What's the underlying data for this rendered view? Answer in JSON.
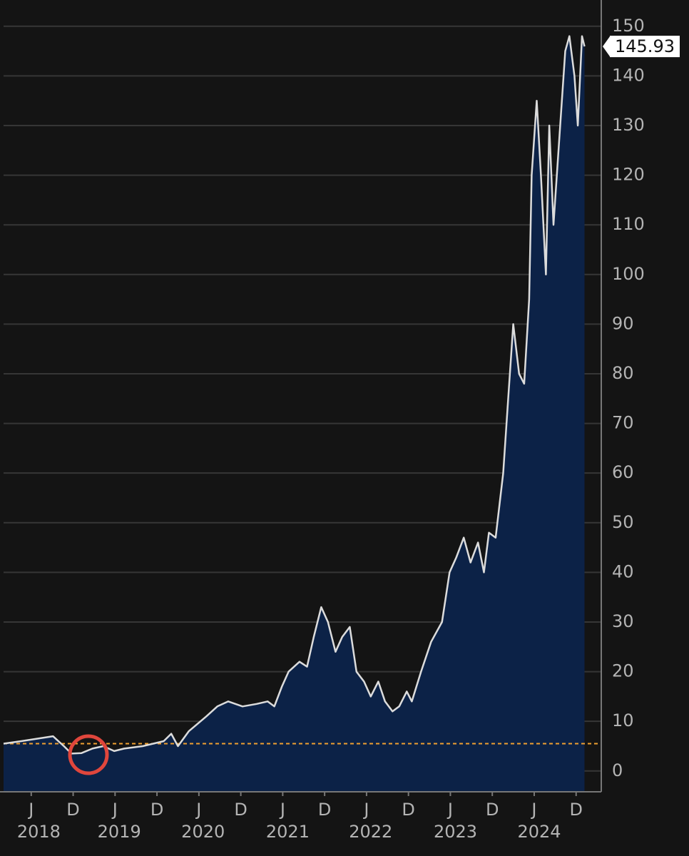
{
  "chart_data": {
    "type": "area",
    "x": [
      2018.09,
      2018.3,
      2018.68,
      2018.81,
      2018.9,
      2019.02,
      2019.15,
      2019.28,
      2019.41,
      2019.53,
      2019.75,
      2020.0,
      2020.09,
      2020.17,
      2020.3,
      2020.51,
      2020.64,
      2020.77,
      2020.94,
      2021.11,
      2021.24,
      2021.32,
      2021.41,
      2021.49,
      2021.62,
      2021.71,
      2021.79,
      2021.88,
      2021.96,
      2022.05,
      2022.13,
      2022.22,
      2022.3,
      2022.39,
      2022.47,
      2022.56,
      2022.64,
      2022.73,
      2022.81,
      2022.9,
      2022.96,
      2023.07,
      2023.19,
      2023.32,
      2023.41,
      2023.49,
      2023.58,
      2023.66,
      2023.75,
      2023.82,
      2023.88,
      2023.96,
      2024.05,
      2024.11,
      2024.17,
      2024.24,
      2024.3,
      2024.36,
      2024.39,
      2024.45,
      2024.5,
      2024.56,
      2024.6,
      2024.65,
      2024.73,
      2024.79,
      2024.84,
      2024.9,
      2024.94,
      2024.99,
      2025.02
    ],
    "values": [
      5.5,
      6,
      7,
      5,
      3.5,
      3.6,
      4.5,
      5,
      4,
      4.5,
      5,
      6,
      7.5,
      5,
      8,
      11,
      13,
      14,
      13,
      13.5,
      14,
      13,
      17,
      20,
      22,
      21,
      27,
      33,
      30,
      24,
      27,
      29,
      20,
      18,
      15,
      18,
      14,
      12,
      13,
      16,
      14,
      20,
      26,
      30,
      40,
      43,
      47,
      42,
      46,
      40,
      48,
      47,
      60,
      75,
      90,
      80,
      78,
      95,
      120,
      135,
      120,
      100,
      130,
      110,
      130,
      145,
      148,
      140,
      130,
      148,
      145.93
    ],
    "current_value": 145.93,
    "line_color": "#dcdcdc",
    "area_color": "#0c2247",
    "reference_line": 5.5,
    "reference_color": "#f0a030",
    "ylim": [
      -4.2,
      155
    ],
    "yticks": [
      0,
      10,
      20,
      30,
      40,
      50,
      60,
      70,
      80,
      90,
      100,
      110,
      120,
      130,
      140,
      150
    ],
    "xlim": [
      2018.09,
      2025.22
    ],
    "xticks": [
      {
        "value": 2018.42,
        "label": "J"
      },
      {
        "value": 2018.92,
        "label": "D"
      },
      {
        "value": 2019.42,
        "label": "J"
      },
      {
        "value": 2019.92,
        "label": "D"
      },
      {
        "value": 2020.42,
        "label": "J"
      },
      {
        "value": 2020.92,
        "label": "D"
      },
      {
        "value": 2021.42,
        "label": "J"
      },
      {
        "value": 2021.92,
        "label": "D"
      },
      {
        "value": 2022.42,
        "label": "J"
      },
      {
        "value": 2022.92,
        "label": "D"
      },
      {
        "value": 2023.42,
        "label": "J"
      },
      {
        "value": 2023.92,
        "label": "D"
      },
      {
        "value": 2024.42,
        "label": "J"
      },
      {
        "value": 2024.92,
        "label": "D"
      }
    ],
    "x_year_labels": [
      {
        "value": 2018.51,
        "label": "2018"
      },
      {
        "value": 2019.47,
        "label": "2019"
      },
      {
        "value": 2020.47,
        "label": "2020"
      },
      {
        "value": 2021.48,
        "label": "2021"
      },
      {
        "value": 2022.47,
        "label": "2022"
      },
      {
        "value": 2023.48,
        "label": "2023"
      },
      {
        "value": 2024.48,
        "label": "2024"
      }
    ],
    "grid": true
  }
}
